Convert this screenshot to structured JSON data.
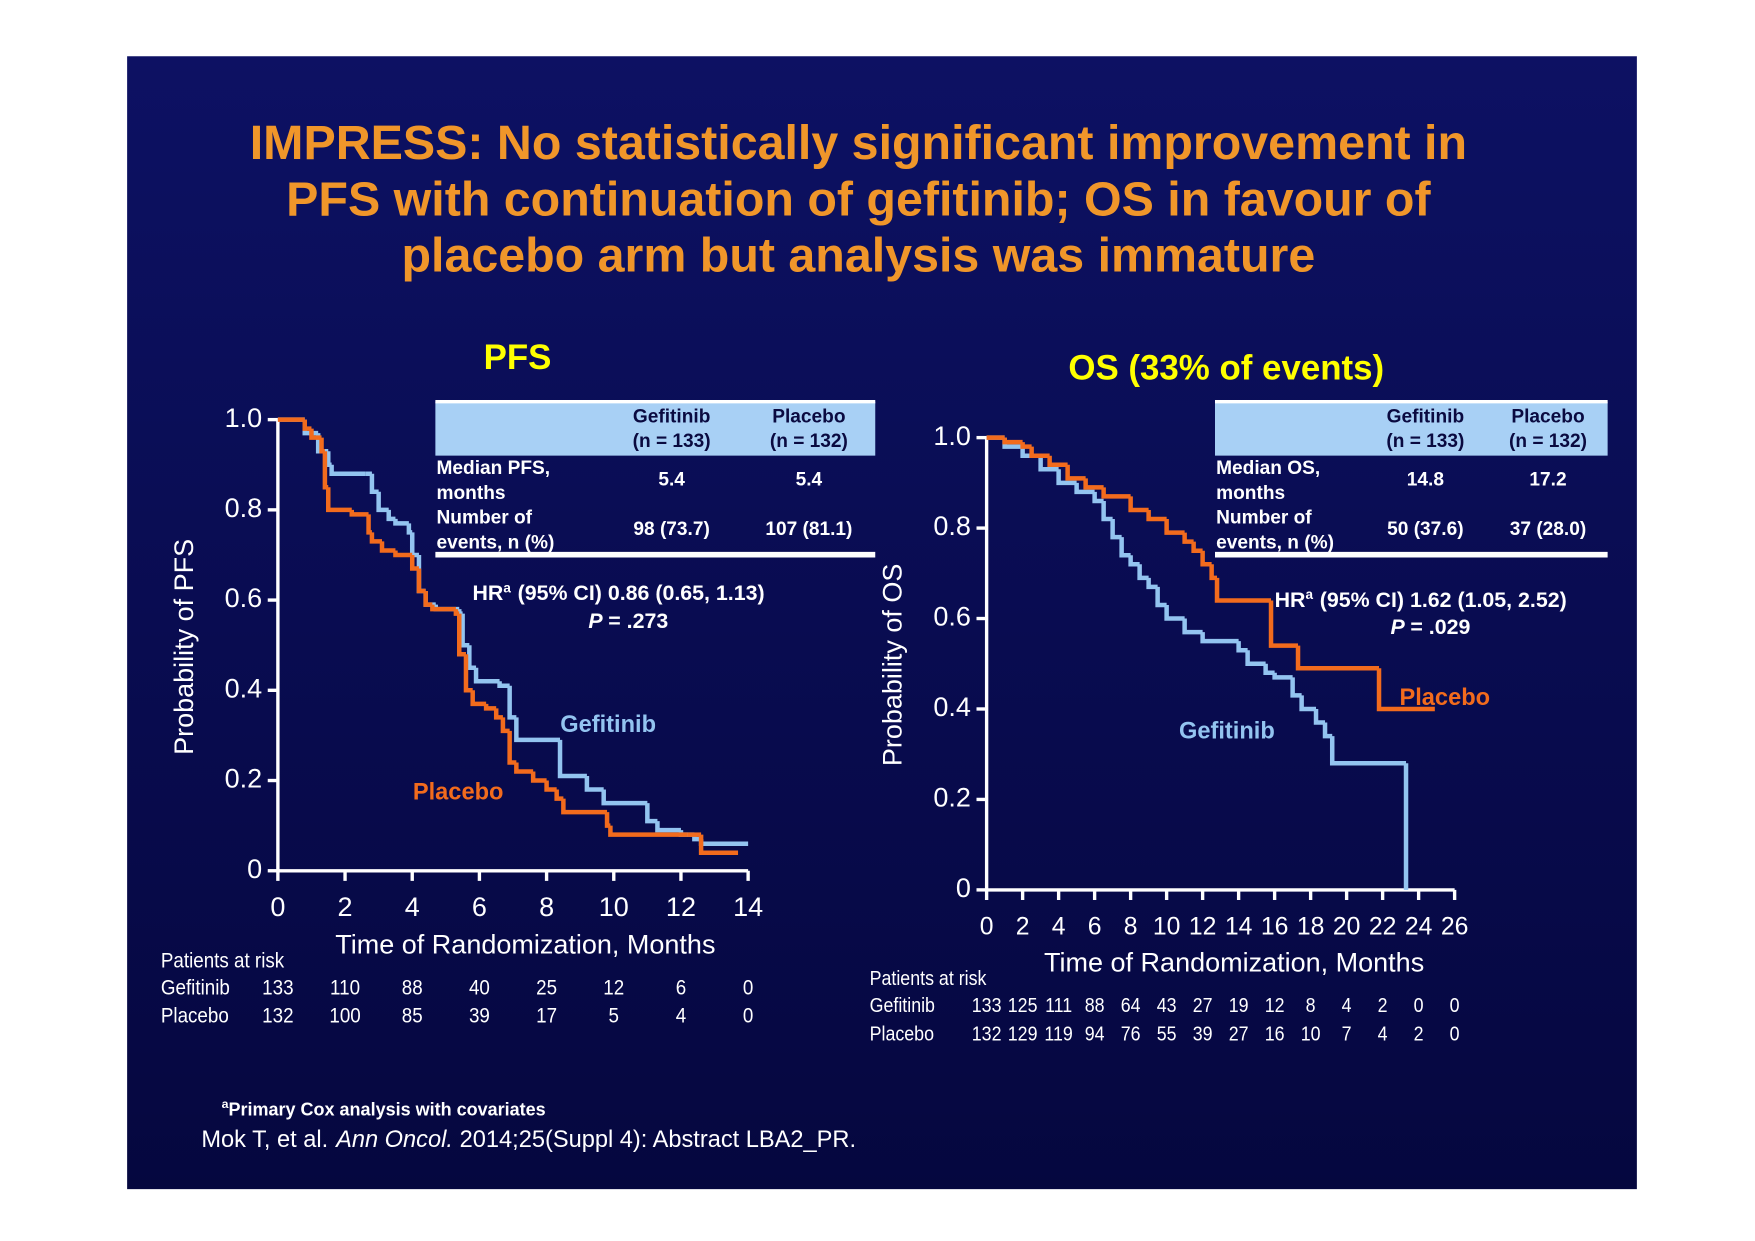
{
  "title": [
    "IMPRESS: No statistically significant improvement in",
    "PFS with continuation of gefitinib; OS in favour of",
    "placebo arm but analysis was immature"
  ],
  "footnote": {
    "sup": "a",
    "text": "Primary Cox analysis with covariates"
  },
  "reference": {
    "authors": "Mok T, et al.",
    "journal": "Ann Oncol.",
    "details": "2014;25(Suppl 4): Abstract LBA2_PR."
  },
  "chart_data": [
    {
      "type": "step",
      "title": "PFS",
      "xlabel": "Time of Randomization, Months",
      "ylabel": "Probability of PFS",
      "xlim": [
        0,
        14
      ],
      "xticks": [
        0,
        2,
        4,
        6,
        8,
        10,
        12,
        14
      ],
      "ylim": [
        0,
        1
      ],
      "yticks": [
        0,
        0.2,
        0.4,
        0.6,
        0.8,
        {
          "value": 1,
          "label": "1.0"
        }
      ],
      "series": [
        {
          "name": "Gefitinib",
          "color": "#93c4f0",
          "x": [
            0,
            0.8,
            1.2,
            1.5,
            1.6,
            2.6,
            2.8,
            3.0,
            3.3,
            3.5,
            3.9,
            4.0,
            4.2,
            4.4,
            4.7,
            5.4,
            5.5,
            5.7,
            5.9,
            6.6,
            6.9,
            7.1,
            8.4,
            9.2,
            9.7,
            11.0,
            11.3,
            12.0,
            12.4,
            12.6,
            14.0
          ],
          "values": [
            1.0,
            0.97,
            0.93,
            0.9,
            0.88,
            0.88,
            0.84,
            0.8,
            0.78,
            0.77,
            0.75,
            0.7,
            0.62,
            0.59,
            0.58,
            0.57,
            0.5,
            0.45,
            0.42,
            0.41,
            0.34,
            0.29,
            0.21,
            0.18,
            0.15,
            0.11,
            0.09,
            0.08,
            0.07,
            0.06,
            0.06
          ]
        },
        {
          "name": "Placebo",
          "color": "#f26b1d",
          "x": [
            0,
            0.8,
            1.0,
            1.3,
            1.4,
            1.5,
            2.2,
            2.7,
            2.8,
            3.1,
            3.5,
            4.0,
            4.2,
            4.4,
            4.6,
            5.3,
            5.4,
            5.6,
            5.8,
            6.2,
            6.5,
            6.7,
            6.9,
            7.1,
            7.6,
            8.0,
            8.3,
            8.5,
            9.8,
            9.9,
            12.2,
            12.6,
            13.7
          ],
          "values": [
            1.0,
            0.98,
            0.96,
            0.93,
            0.85,
            0.8,
            0.79,
            0.75,
            0.73,
            0.71,
            0.7,
            0.67,
            0.62,
            0.59,
            0.58,
            0.57,
            0.48,
            0.4,
            0.37,
            0.36,
            0.34,
            0.31,
            0.24,
            0.22,
            0.2,
            0.18,
            0.16,
            0.13,
            0.1,
            0.08,
            0.08,
            0.04,
            0.04
          ]
        }
      ],
      "table": {
        "header": [
          [
            "Gefitinib",
            "(n = 133)"
          ],
          [
            "Placebo",
            "(n = 132)"
          ]
        ],
        "rows": [
          {
            "label": [
              "Median PFS,",
              "months"
            ],
            "values": [
              "5.4",
              "5.4"
            ]
          },
          {
            "label": [
              "Number of",
              "events, n (%)"
            ],
            "values": [
              "98 (73.7)",
              "107 (81.1)"
            ]
          }
        ]
      },
      "hr": {
        "prefix": "HR",
        "sup": "a",
        "text": "(95% CI) 0.86 (0.65, 1.13)"
      },
      "p_value": {
        "label": "P",
        "text": "= .273"
      },
      "at_risk": {
        "label": "Patients at risk",
        "rows": [
          {
            "name": "Gefitinib",
            "values": [
              133,
              110,
              88,
              40,
              25,
              12,
              6,
              0
            ]
          },
          {
            "name": "Placebo",
            "values": [
              132,
              100,
              85,
              39,
              17,
              5,
              4,
              0
            ]
          }
        ]
      }
    },
    {
      "type": "step",
      "title": "OS (33% of events)",
      "xlabel": "Time of Randomization, Months",
      "ylabel": "Probability of OS",
      "xlim": [
        0,
        26
      ],
      "xticks": [
        0,
        2,
        4,
        6,
        8,
        10,
        12,
        14,
        16,
        18,
        20,
        22,
        24,
        26
      ],
      "ylim": [
        0,
        1
      ],
      "yticks": [
        0,
        0.2,
        0.4,
        0.6,
        0.8,
        {
          "value": 1,
          "label": "1.0"
        }
      ],
      "series": [
        {
          "name": "Gefitinib",
          "color": "#93c4f0",
          "x": [
            0,
            1,
            2,
            3,
            4,
            5,
            6,
            6.5,
            7,
            7.5,
            8,
            8.5,
            9,
            9.5,
            10,
            11,
            12,
            14,
            14.5,
            15.5,
            16,
            17,
            17.5,
            18.3,
            18.8,
            19.2,
            23.3
          ],
          "values": [
            1.0,
            0.98,
            0.96,
            0.93,
            0.9,
            0.88,
            0.86,
            0.82,
            0.78,
            0.74,
            0.72,
            0.69,
            0.67,
            0.63,
            0.6,
            0.57,
            0.55,
            0.53,
            0.5,
            0.48,
            0.47,
            0.43,
            0.4,
            0.37,
            0.34,
            0.28,
            0
          ]
        },
        {
          "name": "Placebo",
          "color": "#f26b1d",
          "x": [
            0,
            1,
            2,
            2.5,
            3.5,
            4.5,
            5.5,
            6.5,
            8,
            9,
            10,
            11,
            11.5,
            12,
            12.5,
            12.8,
            15.8,
            17.3,
            21.8,
            24.9
          ],
          "values": [
            1.0,
            0.99,
            0.98,
            0.96,
            0.94,
            0.91,
            0.89,
            0.87,
            0.84,
            0.82,
            0.79,
            0.77,
            0.75,
            0.72,
            0.69,
            0.64,
            0.54,
            0.49,
            0.4,
            0.4
          ]
        }
      ],
      "table": {
        "header": [
          [
            "Gefitinib",
            "(n = 133)"
          ],
          [
            "Placebo",
            "(n = 132)"
          ]
        ],
        "rows": [
          {
            "label": [
              "Median OS,",
              "months"
            ],
            "values": [
              "14.8",
              "17.2"
            ]
          },
          {
            "label": [
              "Number of",
              "events, n (%)"
            ],
            "values": [
              "50 (37.6)",
              "37 (28.0)"
            ]
          }
        ]
      },
      "hr": {
        "prefix": "HR",
        "sup": "a",
        "text": "(95% CI) 1.62 (1.05, 2.52)"
      },
      "p_value": {
        "label": "P",
        "text": "= .029"
      },
      "at_risk": {
        "label": "Patients at risk",
        "rows": [
          {
            "name": "Gefitinib",
            "values": [
              133,
              125,
              111,
              88,
              64,
              43,
              27,
              19,
              12,
              8,
              4,
              2,
              0,
              0
            ]
          },
          {
            "name": "Placebo",
            "values": [
              132,
              129,
              119,
              94,
              76,
              55,
              39,
              27,
              16,
              10,
              7,
              4,
              2,
              0
            ]
          }
        ]
      }
    }
  ]
}
